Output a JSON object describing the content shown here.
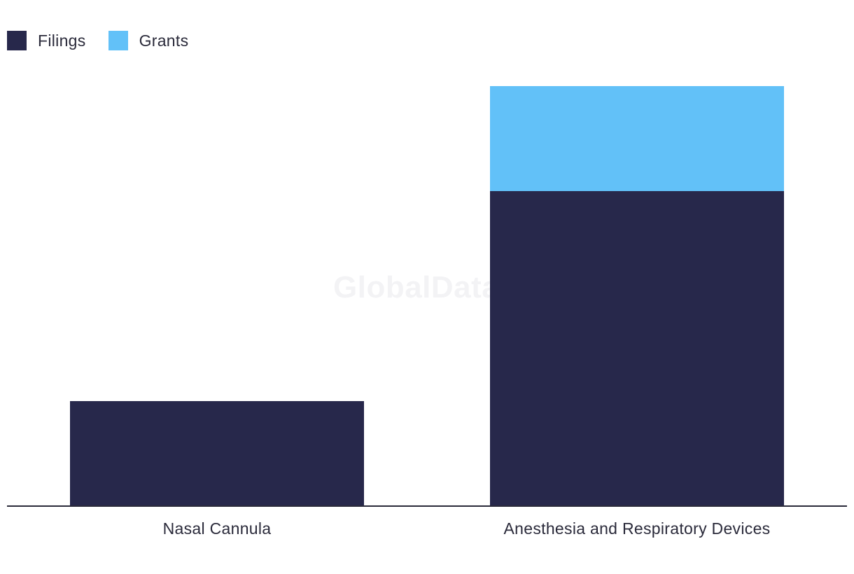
{
  "watermark": "GlobalData",
  "chart_data": {
    "type": "bar",
    "stacked": true,
    "categories": [
      "Nasal Cannula",
      "Anesthesia and Respiratory Devices"
    ],
    "series": [
      {
        "name": "Filings",
        "color": "#27284b",
        "values": [
          1,
          3
        ]
      },
      {
        "name": "Grants",
        "color": "#62c1f8",
        "values": [
          0,
          1
        ]
      }
    ],
    "title": "",
    "xlabel": "",
    "ylabel": "",
    "ylim": [
      0,
      4
    ],
    "grid": false,
    "legend_position": "top-left"
  }
}
